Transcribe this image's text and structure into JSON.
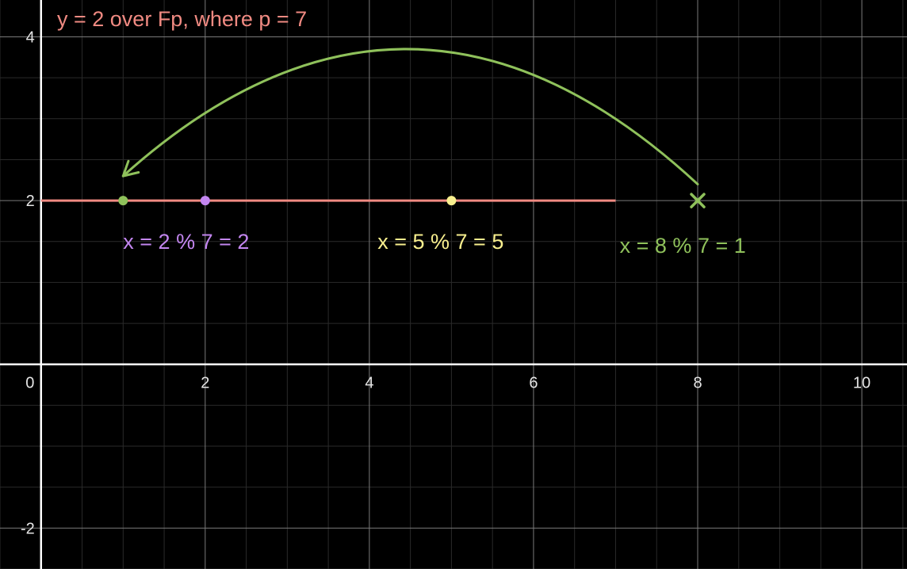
{
  "chart_data": {
    "type": "line",
    "title": "y = 2 over Fp, where p = 7",
    "xlim": [
      -0.5,
      10.55
    ],
    "ylim": [
      -2.5,
      4.45
    ],
    "grid": true,
    "x_ticks": [
      "0",
      "2",
      "4",
      "6",
      "8",
      "10"
    ],
    "y_ticks": [
      "-2",
      "2",
      "4"
    ],
    "segment": {
      "x": [
        0,
        7
      ],
      "y": 2,
      "color": "#f08a82"
    },
    "points": [
      {
        "x": 1,
        "y": 2,
        "color": "#8fc15b",
        "marker": "dot"
      },
      {
        "x": 2,
        "y": 2,
        "color": "#c386f0",
        "marker": "dot"
      },
      {
        "x": 5,
        "y": 2,
        "color": "#f8ef8e",
        "marker": "dot"
      },
      {
        "x": 8,
        "y": 2,
        "color": "#8fc15b",
        "marker": "x"
      }
    ],
    "annotations": [
      {
        "text": "x = 2 % 7 = 2",
        "x": 1,
        "y": 1.5,
        "color": "#c386f0"
      },
      {
        "text": "x = 5 % 7 = 5",
        "x": 4.1,
        "y": 1.5,
        "color": "#f8ef8e"
      },
      {
        "text": "x = 8 % 7 = 1",
        "x": 7.05,
        "y": 1.45,
        "color": "#8fc15b"
      }
    ],
    "arrow": {
      "from": [
        8,
        2.2
      ],
      "to": [
        1,
        2.3
      ],
      "peak_y": 3.85,
      "color": "#8fc15b"
    }
  },
  "colors": {
    "background": "#000000",
    "minor_grid": "#2a2a2a",
    "major_grid": "#7a7a7a",
    "axis": "#ffffff",
    "title": "#f08a82"
  }
}
